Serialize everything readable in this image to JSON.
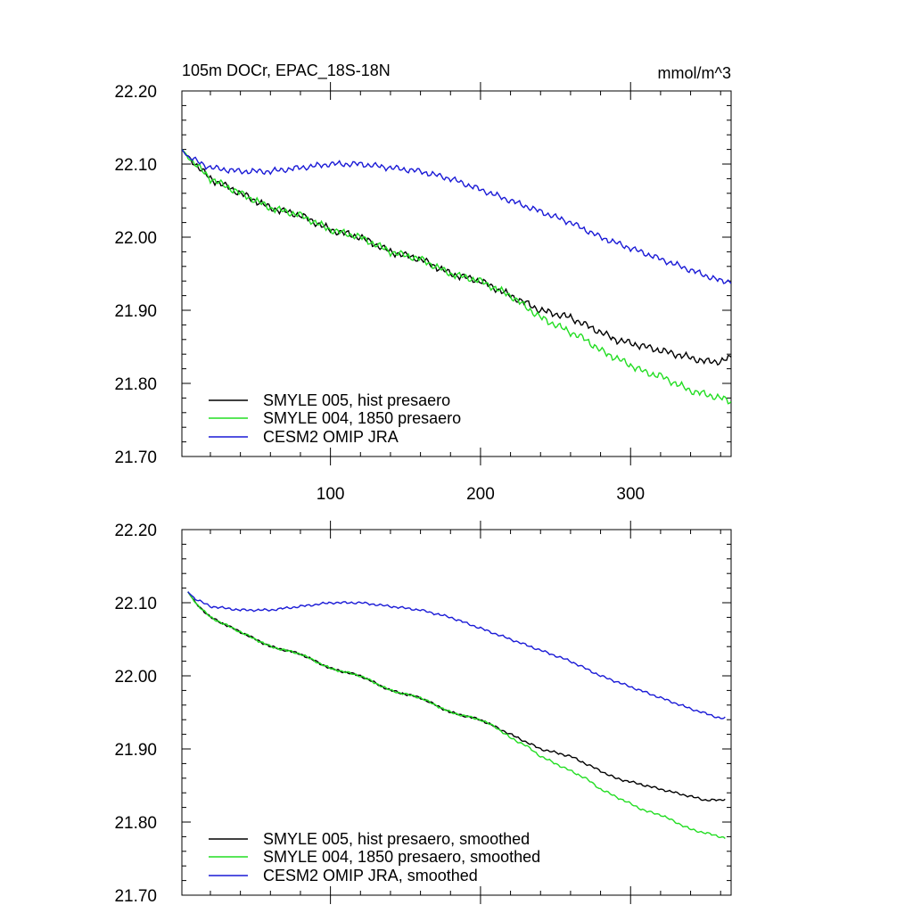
{
  "chart_data": [
    {
      "type": "line",
      "title": "105m DOCr, EPAC_18S-18N",
      "units": "mmol/m^3",
      "xlim": [
        1,
        367
      ],
      "ylim": [
        21.7,
        22.2
      ],
      "x_ticks": [
        "100",
        "200",
        "300"
      ],
      "y_ticks": [
        "21.70",
        "21.80",
        "21.90",
        "22.00",
        "22.10",
        "22.20"
      ],
      "legend_position": "bottom-left",
      "grid": false,
      "series": [
        {
          "name": "SMYLE 005, hist presaero",
          "color": "#000000",
          "noise": 0.006,
          "x": [
            1,
            5,
            10,
            20,
            40,
            60,
            80,
            100,
            120,
            140,
            160,
            180,
            200,
            210,
            220,
            230,
            240,
            250,
            260,
            270,
            280,
            290,
            300,
            310,
            320,
            330,
            340,
            350,
            360,
            367
          ],
          "y": [
            22.12,
            22.11,
            22.1,
            22.08,
            22.06,
            22.04,
            22.03,
            22.01,
            22.0,
            21.98,
            21.97,
            21.95,
            21.94,
            21.93,
            21.92,
            21.91,
            21.9,
            21.895,
            21.89,
            21.88,
            21.87,
            21.86,
            21.855,
            21.85,
            21.845,
            21.84,
            21.835,
            21.83,
            21.83,
            21.835
          ]
        },
        {
          "name": "SMYLE 004, 1850 presaero",
          "color": "#22dd22",
          "noise": 0.006,
          "x": [
            1,
            5,
            10,
            20,
            40,
            60,
            80,
            100,
            120,
            140,
            160,
            180,
            200,
            210,
            220,
            230,
            240,
            250,
            260,
            270,
            280,
            290,
            300,
            310,
            320,
            330,
            340,
            350,
            360,
            367
          ],
          "y": [
            22.12,
            22.11,
            22.1,
            22.08,
            22.06,
            22.04,
            22.03,
            22.01,
            22.0,
            21.98,
            21.97,
            21.95,
            21.94,
            21.93,
            21.92,
            21.905,
            21.89,
            21.88,
            21.87,
            21.86,
            21.845,
            21.835,
            21.825,
            21.815,
            21.81,
            21.8,
            21.79,
            21.785,
            21.78,
            21.775
          ]
        },
        {
          "name": "CESM2 OMIP JRA",
          "color": "#1a1ad6",
          "noise": 0.005,
          "x": [
            1,
            5,
            10,
            20,
            40,
            60,
            80,
            100,
            120,
            140,
            160,
            180,
            200,
            220,
            240,
            260,
            280,
            300,
            320,
            340,
            360,
            367
          ],
          "y": [
            22.12,
            22.11,
            22.105,
            22.095,
            22.09,
            22.09,
            22.095,
            22.1,
            22.1,
            22.095,
            22.09,
            22.08,
            22.065,
            22.05,
            22.035,
            22.02,
            22.0,
            21.985,
            21.97,
            21.955,
            21.94,
            21.94
          ]
        }
      ]
    },
    {
      "type": "line",
      "title": "",
      "xlim": [
        1,
        367
      ],
      "ylim": [
        21.7,
        22.2
      ],
      "x_ticks": [
        "",
        "",
        ""
      ],
      "y_ticks": [
        "21.70",
        "21.80",
        "21.90",
        "22.00",
        "22.10",
        "22.20"
      ],
      "legend_position": "bottom-left",
      "grid": false,
      "series": [
        {
          "name": "SMYLE 005, hist presaero, smoothed",
          "color": "#000000",
          "noise": 0.002,
          "x": [
            5,
            10,
            20,
            40,
            60,
            80,
            100,
            120,
            140,
            160,
            180,
            200,
            210,
            220,
            230,
            240,
            250,
            260,
            270,
            280,
            290,
            300,
            310,
            320,
            330,
            340,
            350,
            360,
            363
          ],
          "y": [
            22.115,
            22.1,
            22.08,
            22.06,
            22.04,
            22.03,
            22.01,
            22.0,
            21.98,
            21.97,
            21.95,
            21.94,
            21.93,
            21.92,
            21.91,
            21.9,
            21.895,
            21.89,
            21.88,
            21.87,
            21.86,
            21.855,
            21.85,
            21.845,
            21.84,
            21.835,
            21.83,
            21.83,
            21.832
          ]
        },
        {
          "name": "SMYLE 004, 1850 presaero, smoothed",
          "color": "#22dd22",
          "noise": 0.002,
          "x": [
            5,
            10,
            20,
            40,
            60,
            80,
            100,
            120,
            140,
            160,
            180,
            200,
            210,
            220,
            230,
            240,
            250,
            260,
            270,
            280,
            290,
            300,
            310,
            320,
            330,
            340,
            350,
            360,
            363
          ],
          "y": [
            22.115,
            22.1,
            22.08,
            22.06,
            22.04,
            22.03,
            22.01,
            22.0,
            21.98,
            21.97,
            21.95,
            21.94,
            21.93,
            21.915,
            21.905,
            21.89,
            21.88,
            21.87,
            21.86,
            21.845,
            21.835,
            21.825,
            21.815,
            21.81,
            21.8,
            21.79,
            21.785,
            21.78,
            21.778
          ]
        },
        {
          "name": "CESM2 OMIP JRA, smoothed",
          "color": "#1a1ad6",
          "noise": 0.002,
          "x": [
            5,
            10,
            20,
            40,
            60,
            80,
            100,
            120,
            140,
            160,
            180,
            200,
            220,
            240,
            260,
            280,
            300,
            320,
            340,
            360,
            363
          ],
          "y": [
            22.115,
            22.105,
            22.095,
            22.09,
            22.09,
            22.095,
            22.1,
            22.1,
            22.095,
            22.09,
            22.08,
            22.065,
            22.05,
            22.035,
            22.02,
            22.0,
            21.985,
            21.97,
            21.955,
            21.942,
            21.942
          ]
        }
      ]
    }
  ]
}
